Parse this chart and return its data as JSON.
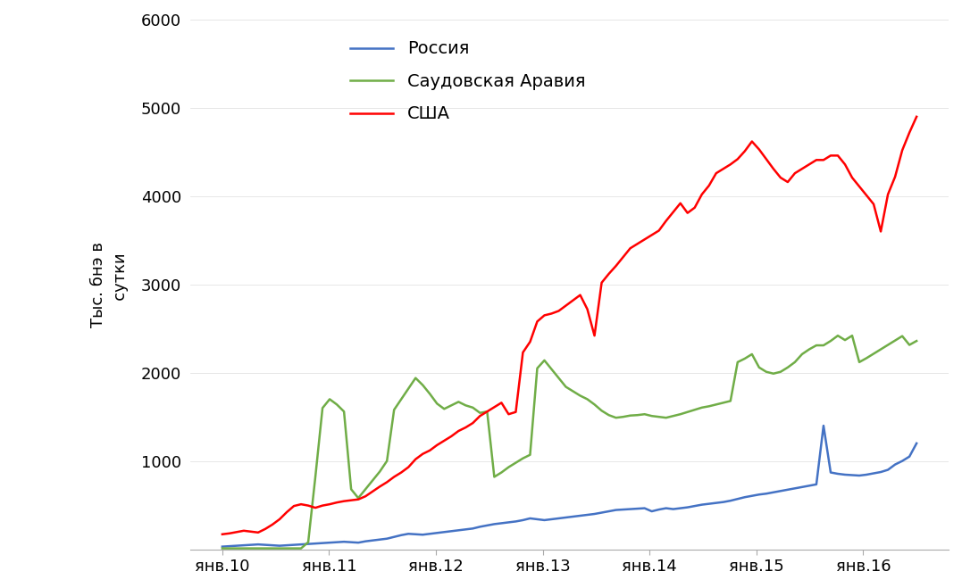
{
  "ylabel": "Тыс. бнэ в\n   сутки",
  "ylim": [
    0,
    6000
  ],
  "yticks": [
    0,
    1000,
    2000,
    3000,
    4000,
    5000,
    6000
  ],
  "ytick_labels": [
    "",
    "1000",
    "2000",
    "3000",
    "4000",
    "5000",
    "6000"
  ],
  "xtick_labels": [
    "янв.10",
    "янв.11",
    "янв.12",
    "янв.13",
    "янв.14",
    "янв.15",
    "янв.16"
  ],
  "legend": [
    "Россия",
    "Саудовская Аравия",
    "США"
  ],
  "colors": {
    "russia": "#4472C4",
    "saudi": "#70AD47",
    "usa": "#FF0000"
  },
  "russia": [
    30,
    35,
    40,
    45,
    50,
    55,
    50,
    45,
    40,
    45,
    50,
    55,
    60,
    65,
    70,
    75,
    80,
    85,
    80,
    75,
    90,
    100,
    110,
    120,
    140,
    160,
    175,
    170,
    165,
    175,
    185,
    195,
    205,
    215,
    225,
    235,
    255,
    270,
    285,
    295,
    305,
    315,
    330,
    350,
    340,
    330,
    340,
    350,
    360,
    370,
    380,
    390,
    400,
    415,
    430,
    445,
    450,
    455,
    460,
    465,
    430,
    450,
    465,
    455,
    465,
    475,
    490,
    505,
    515,
    525,
    535,
    550,
    570,
    590,
    605,
    620,
    630,
    645,
    660,
    675,
    690,
    705,
    720,
    735,
    1400,
    870,
    855,
    845,
    840,
    835,
    845,
    860,
    875,
    900,
    960,
    1000,
    1050,
    1200
  ],
  "saudi": [
    10,
    10,
    10,
    10,
    10,
    10,
    10,
    10,
    10,
    10,
    10,
    10,
    80,
    820,
    1600,
    1700,
    1640,
    1560,
    680,
    580,
    680,
    780,
    880,
    1000,
    1580,
    1700,
    1820,
    1940,
    1860,
    1760,
    1650,
    1590,
    1630,
    1670,
    1630,
    1605,
    1545,
    1560,
    820,
    870,
    930,
    980,
    1030,
    1070,
    2050,
    2140,
    2040,
    1940,
    1840,
    1790,
    1740,
    1700,
    1640,
    1570,
    1520,
    1490,
    1500,
    1515,
    1520,
    1530,
    1510,
    1500,
    1490,
    1510,
    1530,
    1555,
    1580,
    1605,
    1620,
    1640,
    1660,
    1680,
    2120,
    2160,
    2210,
    2060,
    2010,
    1990,
    2010,
    2060,
    2120,
    2210,
    2265,
    2310,
    2310,
    2360,
    2420,
    2370,
    2420,
    2120,
    2165,
    2215,
    2265,
    2315,
    2365,
    2415,
    2315,
    2360
  ],
  "usa": [
    170,
    180,
    195,
    210,
    200,
    190,
    230,
    280,
    340,
    420,
    490,
    510,
    495,
    470,
    495,
    510,
    530,
    545,
    555,
    565,
    600,
    655,
    710,
    760,
    820,
    870,
    930,
    1020,
    1080,
    1120,
    1180,
    1230,
    1280,
    1340,
    1380,
    1430,
    1510,
    1560,
    1610,
    1660,
    1530,
    1555,
    2230,
    2350,
    2580,
    2650,
    2670,
    2700,
    2760,
    2820,
    2880,
    2720,
    2420,
    3020,
    3120,
    3210,
    3310,
    3410,
    3460,
    3510,
    3560,
    3610,
    3720,
    3820,
    3920,
    3810,
    3870,
    4020,
    4120,
    4260,
    4310,
    4360,
    4420,
    4510,
    4620,
    4530,
    4420,
    4310,
    4210,
    4160,
    4260,
    4310,
    4360,
    4410,
    4410,
    4460,
    4460,
    4360,
    4210,
    4110,
    4010,
    3910,
    3600,
    4020,
    4220,
    4520,
    4720,
    4900
  ]
}
